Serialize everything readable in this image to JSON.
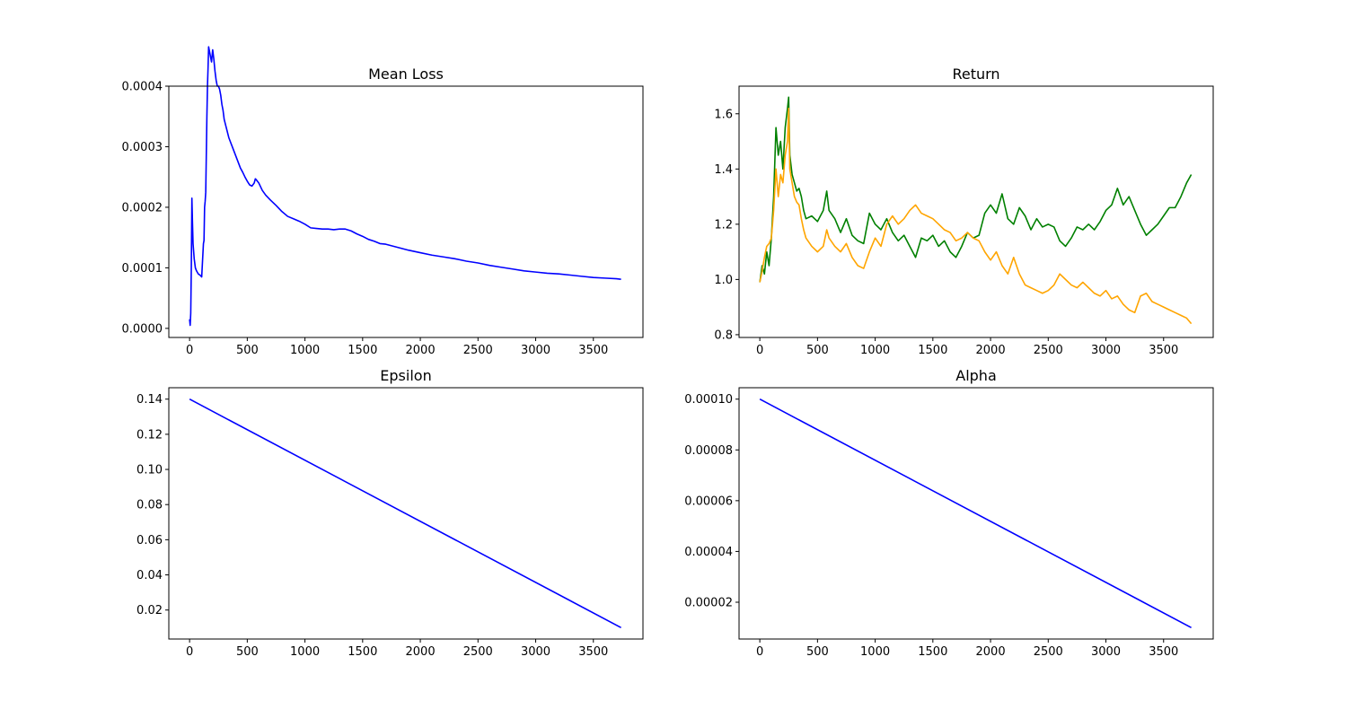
{
  "figure": {
    "background": "#ffffff"
  },
  "chart_data": [
    {
      "type": "line",
      "title": "Mean Loss",
      "xlabel": "",
      "ylabel": "",
      "xlim": [
        -180,
        3930
      ],
      "ylim": [
        -1.5e-05,
        0.0004
      ],
      "xticks": [
        0,
        500,
        1000,
        1500,
        2000,
        2500,
        3000,
        3500
      ],
      "xtick_labels": [
        "0",
        "500",
        "1000",
        "1500",
        "2000",
        "2500",
        "3000",
        "3500"
      ],
      "yticks": [
        0.0,
        0.0001,
        0.0002,
        0.0003,
        0.0004
      ],
      "ytick_labels": [
        "0.0000",
        "0.0001",
        "0.0002",
        "0.0003",
        "0.0004"
      ],
      "grid": false,
      "series": [
        {
          "color": "#0000ff",
          "x": [
            0,
            5,
            10,
            15,
            20,
            25,
            30,
            40,
            50,
            60,
            75,
            90,
            105,
            120,
            125,
            130,
            135,
            140,
            150,
            155,
            160,
            165,
            170,
            180,
            190,
            200,
            210,
            220,
            230,
            240,
            250,
            260,
            270,
            280,
            290,
            300,
            320,
            340,
            360,
            380,
            400,
            420,
            440,
            460,
            480,
            500,
            520,
            540,
            560,
            570,
            580,
            600,
            630,
            660,
            700,
            750,
            800,
            850,
            900,
            950,
            1000,
            1050,
            1100,
            1150,
            1200,
            1250,
            1300,
            1350,
            1400,
            1450,
            1500,
            1550,
            1600,
            1650,
            1700,
            1800,
            1900,
            2000,
            2100,
            2200,
            2300,
            2400,
            2500,
            2600,
            2700,
            2800,
            2900,
            3000,
            3100,
            3200,
            3300,
            3400,
            3500,
            3600,
            3700,
            3740
          ],
          "y": [
            1.5e-05,
            5e-06,
            2.5e-05,
            0.0001,
            0.000215,
            0.000175,
            0.00014,
            0.000115,
            0.0001,
            9.5e-05,
            9e-05,
            8.8e-05,
            8.5e-05,
            0.00014,
            0.000145,
            0.0002,
            0.00021,
            0.000225,
            0.00035,
            0.0004,
            0.00043,
            0.000465,
            0.00046,
            0.00045,
            0.00044,
            0.00046,
            0.000445,
            0.000425,
            0.00041,
            0.0004,
            0.0004,
            0.000395,
            0.000385,
            0.00037,
            0.00036,
            0.000345,
            0.00033,
            0.000315,
            0.000305,
            0.000295,
            0.000285,
            0.000275,
            0.000265,
            0.000258,
            0.00025,
            0.000243,
            0.000237,
            0.000235,
            0.00024,
            0.000247,
            0.000245,
            0.00024,
            0.000228,
            0.00022,
            0.000212,
            0.000203,
            0.000193,
            0.000185,
            0.000181,
            0.000177,
            0.000172,
            0.000166,
            0.000165,
            0.000164,
            0.000164,
            0.000163,
            0.000164,
            0.000164,
            0.000161,
            0.000156,
            0.000152,
            0.000147,
            0.000144,
            0.00014,
            0.000139,
            0.000134,
            0.000129,
            0.000125,
            0.000121,
            0.000118,
            0.000115,
            0.000111,
            0.000108,
            0.000104,
            0.000101,
            9.8e-05,
            9.5e-05,
            9.3e-05,
            9.1e-05,
            9e-05,
            8.8e-05,
            8.6e-05,
            8.4e-05,
            8.3e-05,
            8.2e-05,
            8.1e-05
          ]
        }
      ]
    },
    {
      "type": "line",
      "title": "Return",
      "xlabel": "",
      "ylabel": "",
      "xlim": [
        -180,
        3930
      ],
      "ylim": [
        0.79,
        1.7
      ],
      "xticks": [
        0,
        500,
        1000,
        1500,
        2000,
        2500,
        3000,
        3500
      ],
      "xtick_labels": [
        "0",
        "500",
        "1000",
        "1500",
        "2000",
        "2500",
        "3000",
        "3500"
      ],
      "yticks": [
        0.8,
        1.0,
        1.2,
        1.4,
        1.6
      ],
      "ytick_labels": [
        "0.8",
        "1.0",
        "1.2",
        "1.4",
        "1.6"
      ],
      "grid": false,
      "series": [
        {
          "color": "#008000",
          "x": [
            0,
            20,
            40,
            60,
            80,
            100,
            120,
            140,
            160,
            180,
            200,
            220,
            240,
            250,
            260,
            280,
            300,
            320,
            340,
            360,
            380,
            400,
            450,
            500,
            550,
            580,
            600,
            650,
            700,
            750,
            800,
            850,
            900,
            950,
            1000,
            1050,
            1100,
            1150,
            1200,
            1250,
            1300,
            1350,
            1400,
            1450,
            1500,
            1550,
            1600,
            1650,
            1700,
            1750,
            1800,
            1850,
            1900,
            1950,
            2000,
            2050,
            2100,
            2150,
            2200,
            2250,
            2300,
            2350,
            2400,
            2450,
            2500,
            2550,
            2600,
            2650,
            2700,
            2750,
            2800,
            2850,
            2900,
            2950,
            3000,
            3050,
            3100,
            3150,
            3200,
            3250,
            3300,
            3350,
            3400,
            3450,
            3500,
            3550,
            3600,
            3650,
            3700,
            3740
          ],
          "y": [
            0.99,
            1.05,
            1.02,
            1.1,
            1.05,
            1.15,
            1.3,
            1.55,
            1.45,
            1.5,
            1.4,
            1.55,
            1.62,
            1.66,
            1.45,
            1.38,
            1.35,
            1.32,
            1.33,
            1.3,
            1.25,
            1.22,
            1.23,
            1.21,
            1.25,
            1.32,
            1.25,
            1.22,
            1.17,
            1.22,
            1.16,
            1.14,
            1.13,
            1.24,
            1.2,
            1.18,
            1.22,
            1.17,
            1.14,
            1.16,
            1.12,
            1.08,
            1.15,
            1.14,
            1.16,
            1.12,
            1.14,
            1.1,
            1.08,
            1.12,
            1.17,
            1.15,
            1.16,
            1.24,
            1.27,
            1.24,
            1.31,
            1.22,
            1.2,
            1.26,
            1.23,
            1.18,
            1.22,
            1.19,
            1.2,
            1.19,
            1.14,
            1.12,
            1.15,
            1.19,
            1.18,
            1.2,
            1.18,
            1.21,
            1.25,
            1.27,
            1.33,
            1.27,
            1.3,
            1.25,
            1.2,
            1.16,
            1.18,
            1.2,
            1.23,
            1.26,
            1.26,
            1.3,
            1.35,
            1.38
          ]
        },
        {
          "color": "#ffa500",
          "x": [
            0,
            20,
            40,
            60,
            80,
            100,
            120,
            140,
            160,
            180,
            200,
            220,
            240,
            250,
            260,
            280,
            300,
            320,
            340,
            360,
            380,
            400,
            450,
            500,
            550,
            580,
            600,
            650,
            700,
            750,
            800,
            850,
            900,
            950,
            1000,
            1050,
            1100,
            1150,
            1200,
            1250,
            1300,
            1350,
            1400,
            1450,
            1500,
            1550,
            1600,
            1650,
            1700,
            1750,
            1800,
            1850,
            1900,
            1950,
            2000,
            2050,
            2100,
            2150,
            2200,
            2250,
            2300,
            2350,
            2400,
            2450,
            2500,
            2550,
            2600,
            2650,
            2700,
            2750,
            2800,
            2850,
            2900,
            2950,
            3000,
            3050,
            3100,
            3150,
            3200,
            3250,
            3300,
            3350,
            3400,
            3450,
            3500,
            3550,
            3600,
            3650,
            3700,
            3740
          ],
          "y": [
            0.99,
            1.03,
            1.08,
            1.12,
            1.13,
            1.15,
            1.25,
            1.4,
            1.3,
            1.38,
            1.35,
            1.45,
            1.5,
            1.62,
            1.4,
            1.35,
            1.3,
            1.28,
            1.27,
            1.22,
            1.18,
            1.15,
            1.12,
            1.1,
            1.12,
            1.18,
            1.15,
            1.12,
            1.1,
            1.13,
            1.08,
            1.05,
            1.04,
            1.1,
            1.15,
            1.12,
            1.2,
            1.23,
            1.2,
            1.22,
            1.25,
            1.27,
            1.24,
            1.23,
            1.22,
            1.2,
            1.18,
            1.17,
            1.14,
            1.15,
            1.17,
            1.15,
            1.14,
            1.1,
            1.07,
            1.1,
            1.05,
            1.02,
            1.08,
            1.02,
            0.98,
            0.97,
            0.96,
            0.95,
            0.96,
            0.98,
            1.02,
            1.0,
            0.98,
            0.97,
            0.99,
            0.97,
            0.95,
            0.94,
            0.96,
            0.93,
            0.94,
            0.91,
            0.89,
            0.88,
            0.94,
            0.95,
            0.92,
            0.91,
            0.9,
            0.89,
            0.88,
            0.87,
            0.86,
            0.84
          ]
        }
      ]
    },
    {
      "type": "line",
      "title": "Epsilon",
      "xlabel": "",
      "ylabel": "",
      "xlim": [
        -180,
        3930
      ],
      "ylim": [
        0.0035,
        0.1465
      ],
      "xticks": [
        0,
        500,
        1000,
        1500,
        2000,
        2500,
        3000,
        3500
      ],
      "xtick_labels": [
        "0",
        "500",
        "1000",
        "1500",
        "2000",
        "2500",
        "3000",
        "3500"
      ],
      "yticks": [
        0.02,
        0.04,
        0.06,
        0.08,
        0.1,
        0.12,
        0.14
      ],
      "ytick_labels": [
        "0.02",
        "0.04",
        "0.06",
        "0.08",
        "0.10",
        "0.12",
        "0.14"
      ],
      "grid": false,
      "series": [
        {
          "color": "#0000ff",
          "x": [
            0,
            3740
          ],
          "y": [
            0.14,
            0.01
          ]
        }
      ]
    },
    {
      "type": "line",
      "title": "Alpha",
      "xlabel": "",
      "ylabel": "",
      "xlim": [
        -180,
        3930
      ],
      "ylim": [
        5.5e-06,
        0.0001045
      ],
      "xticks": [
        0,
        500,
        1000,
        1500,
        2000,
        2500,
        3000,
        3500
      ],
      "xtick_labels": [
        "0",
        "500",
        "1000",
        "1500",
        "2000",
        "2500",
        "3000",
        "3500"
      ],
      "yticks": [
        2e-05,
        4e-05,
        6e-05,
        8e-05,
        0.0001
      ],
      "ytick_labels": [
        "0.00002",
        "0.00004",
        "0.00006",
        "0.00008",
        "0.00010"
      ],
      "grid": false,
      "series": [
        {
          "color": "#0000ff",
          "x": [
            0,
            3740
          ],
          "y": [
            0.0001,
            1e-05
          ]
        }
      ]
    }
  ]
}
